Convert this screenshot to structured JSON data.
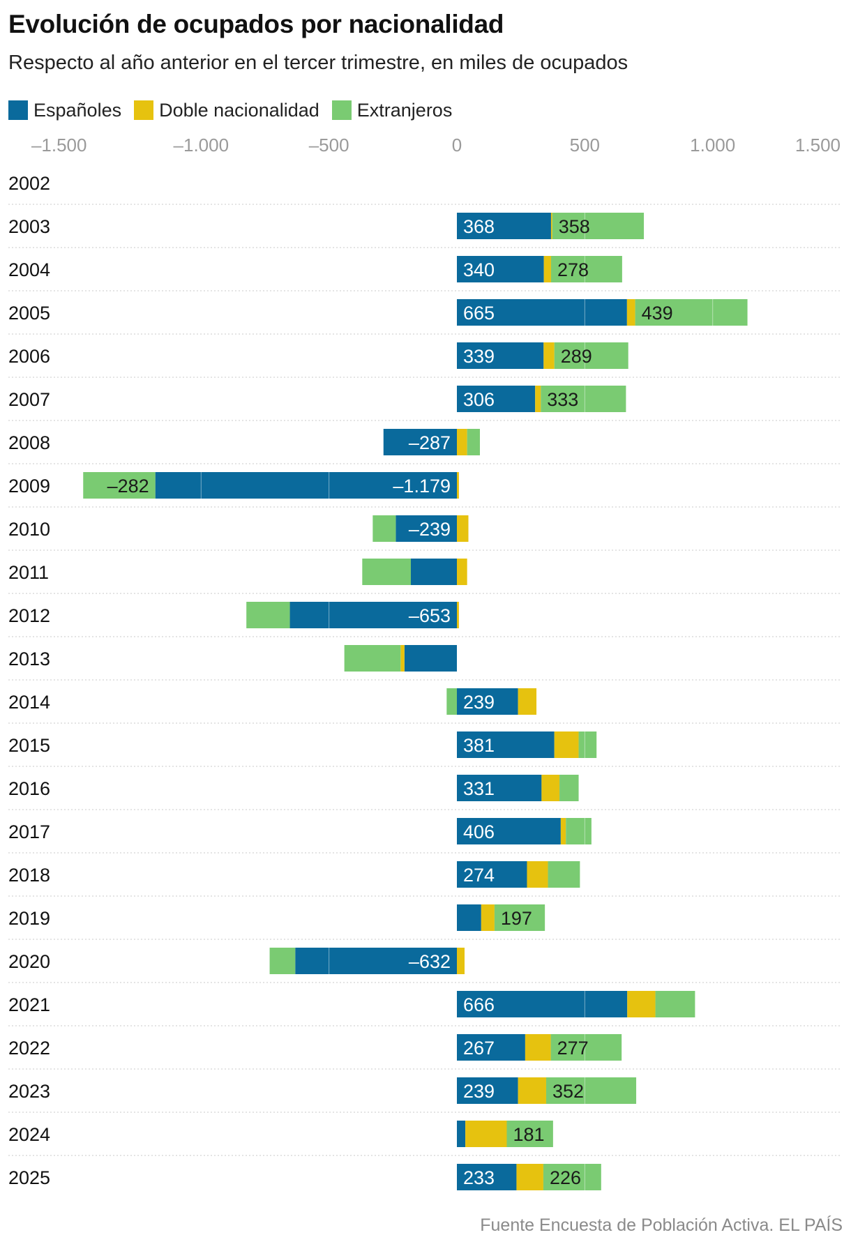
{
  "header": {
    "title": "Evolución de ocupados por nacionalidad",
    "subtitle": "Respecto al año anterior en el tercer trimestre, en miles de ocupados"
  },
  "legend": [
    {
      "label": "Españoles",
      "color": "#0a6a9c"
    },
    {
      "label": "Doble nacionalidad",
      "color": "#e6c20f"
    },
    {
      "label": "Extranjeros",
      "color": "#7acb72"
    }
  ],
  "footer": {
    "source": "Fuente Encuesta de Población Activa. EL PAÍS"
  },
  "chart_data": {
    "type": "bar",
    "orientation": "horizontal",
    "stacked": true,
    "xlim": [
      -1500,
      1500
    ],
    "xticks": [
      -1500,
      -1000,
      -500,
      0,
      500,
      1000,
      1500
    ],
    "xtick_labels": [
      "–1.500",
      "–1.000",
      "–500",
      "0",
      "500",
      "1.000",
      "1.500"
    ],
    "grid": true,
    "legend_position": "top-left",
    "categories": [
      "2002",
      "2003",
      "2004",
      "2005",
      "2006",
      "2007",
      "2008",
      "2009",
      "2010",
      "2011",
      "2012",
      "2013",
      "2014",
      "2015",
      "2016",
      "2017",
      "2018",
      "2019",
      "2020",
      "2021",
      "2022",
      "2023",
      "2024",
      "2025"
    ],
    "series": [
      {
        "name": "Españoles",
        "color": "#0a6a9c",
        "values": [
          0,
          368,
          340,
          665,
          339,
          306,
          -287,
          -1179,
          -239,
          -180,
          -653,
          -205,
          239,
          381,
          331,
          406,
          274,
          95,
          -632,
          666,
          267,
          239,
          33,
          233
        ],
        "labels": [
          "",
          "368",
          "340",
          "665",
          "339",
          "306",
          "–287",
          "–1.179",
          "–239",
          "",
          "–653",
          "",
          "239",
          "381",
          "331",
          "406",
          "274",
          "",
          "–632",
          "666",
          "267",
          "239",
          "",
          "233"
        ]
      },
      {
        "name": "Doble nacionalidad",
        "color": "#e6c20f",
        "values": [
          0,
          5,
          28,
          32,
          42,
          22,
          40,
          8,
          45,
          40,
          8,
          -15,
          72,
          95,
          70,
          20,
          82,
          52,
          30,
          110,
          100,
          110,
          162,
          105
        ],
        "labels": [
          "",
          "",
          "",
          "",
          "",
          "",
          "",
          "",
          "",
          "",
          "",
          "",
          "",
          "",
          "",
          "",
          "",
          "",
          "",
          "",
          "",
          "",
          "",
          ""
        ]
      },
      {
        "name": "Extranjeros",
        "color": "#7acb72",
        "values": [
          0,
          358,
          278,
          439,
          289,
          333,
          50,
          -282,
          -90,
          -190,
          -170,
          -220,
          -40,
          70,
          75,
          100,
          125,
          197,
          -100,
          155,
          277,
          352,
          181,
          226
        ],
        "labels": [
          "",
          "358",
          "278",
          "439",
          "289",
          "333",
          "",
          "–282",
          "",
          "",
          "",
          "",
          "",
          "",
          "",
          "",
          "",
          "197",
          "",
          "",
          "277",
          "352",
          "181",
          "226"
        ]
      }
    ]
  }
}
